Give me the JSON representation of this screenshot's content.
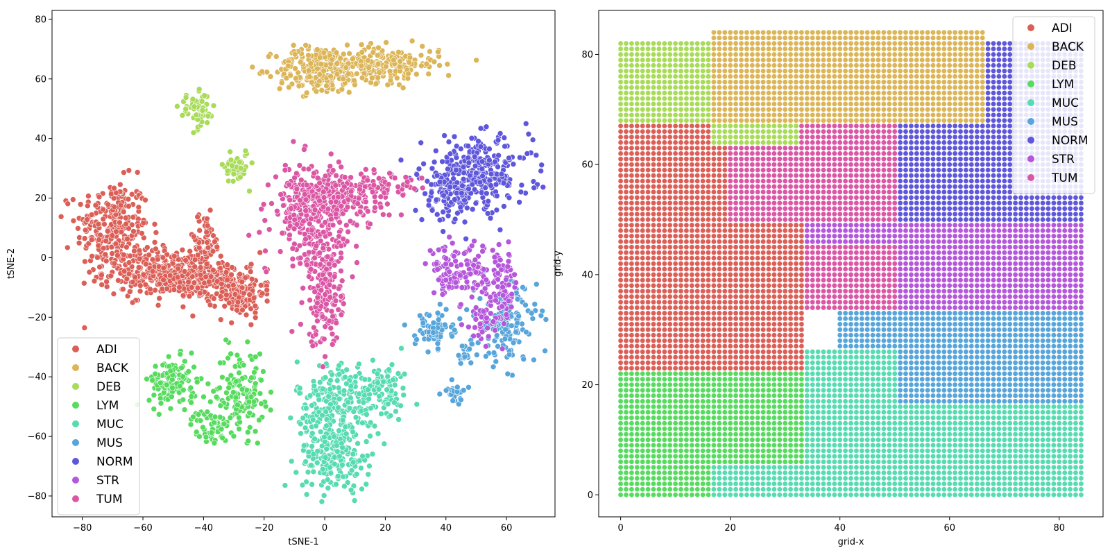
{
  "palette": {
    "ADI": "#db5f57",
    "BACK": "#dbb557",
    "DEB": "#a8db57",
    "LYM": "#57db5f",
    "MUC": "#57dbb0",
    "MUS": "#57a5db",
    "NORM": "#5f57db",
    "STR": "#b557db",
    "TUM": "#db57a5"
  },
  "chart_data": [
    {
      "type": "scatter",
      "xlabel": "tSNE-1",
      "ylabel": "tSNE-2",
      "xlim": [
        -90,
        76
      ],
      "ylim": [
        -87,
        83
      ],
      "xticks": [
        -80,
        -60,
        -40,
        -20,
        0,
        20,
        40,
        60
      ],
      "yticks": [
        -80,
        -60,
        -40,
        -20,
        0,
        20,
        40,
        60,
        80
      ],
      "legend": {
        "placement": "lower-left",
        "entries": [
          "ADI",
          "BACK",
          "DEB",
          "LYM",
          "MUC",
          "MUS",
          "NORM",
          "STR",
          "TUM"
        ]
      },
      "grid": false,
      "clusters": [
        {
          "class": "ADI",
          "center": [
            -70,
            10
          ],
          "spread": [
            6,
            8
          ],
          "n": 260
        },
        {
          "class": "ADI",
          "center": [
            -55,
            -5
          ],
          "spread": [
            9,
            4
          ],
          "n": 260
        },
        {
          "class": "ADI",
          "center": [
            -40,
            -8
          ],
          "spread": [
            7,
            3
          ],
          "n": 180
        },
        {
          "class": "ADI",
          "center": [
            -40,
            5
          ],
          "spread": [
            3,
            5
          ],
          "n": 70
        },
        {
          "class": "ADI",
          "center": [
            -28,
            -12
          ],
          "spread": [
            4,
            4
          ],
          "n": 140
        },
        {
          "class": "BACK",
          "center": [
            -2,
            63
          ],
          "spread": [
            7,
            4
          ],
          "n": 230
        },
        {
          "class": "BACK",
          "center": [
            18,
            65
          ],
          "spread": [
            10,
            3
          ],
          "n": 230
        },
        {
          "class": "DEB",
          "center": [
            -42,
            49
          ],
          "spread": [
            3,
            3
          ],
          "n": 60
        },
        {
          "class": "DEB",
          "center": [
            -29,
            31
          ],
          "spread": [
            2,
            3
          ],
          "n": 45
        },
        {
          "class": "LYM",
          "center": [
            -50,
            -42
          ],
          "spread": [
            4,
            4
          ],
          "n": 130
        },
        {
          "class": "LYM",
          "center": [
            -28,
            -45
          ],
          "spread": [
            4,
            7
          ],
          "n": 140
        },
        {
          "class": "LYM",
          "center": [
            -38,
            -57
          ],
          "spread": [
            3,
            3
          ],
          "n": 50
        },
        {
          "class": "MUC",
          "center": [
            5,
            -48
          ],
          "spread": [
            7,
            7
          ],
          "n": 230
        },
        {
          "class": "MUC",
          "center": [
            3,
            -66
          ],
          "spread": [
            6,
            6
          ],
          "n": 200
        },
        {
          "class": "MUC",
          "center": [
            20,
            -45
          ],
          "spread": [
            4,
            5
          ],
          "n": 70
        },
        {
          "class": "MUS",
          "center": [
            36,
            -24
          ],
          "spread": [
            3,
            3
          ],
          "n": 70
        },
        {
          "class": "MUS",
          "center": [
            60,
            -22
          ],
          "spread": [
            5,
            7
          ],
          "n": 150
        },
        {
          "class": "MUS",
          "center": [
            47,
            -32
          ],
          "spread": [
            2,
            2
          ],
          "n": 20
        },
        {
          "class": "MUS",
          "center": [
            43,
            -45
          ],
          "spread": [
            2,
            2
          ],
          "n": 25
        },
        {
          "class": "NORM",
          "center": [
            50,
            28
          ],
          "spread": [
            9,
            6
          ],
          "n": 300
        },
        {
          "class": "NORM",
          "center": [
            40,
            20
          ],
          "spread": [
            4,
            4
          ],
          "n": 70
        },
        {
          "class": "STR",
          "center": [
            40,
            -5
          ],
          "spread": [
            3,
            4
          ],
          "n": 60
        },
        {
          "class": "STR",
          "center": [
            48,
            -5
          ],
          "spread": [
            3,
            5
          ],
          "n": 60
        },
        {
          "class": "STR",
          "center": [
            58,
            -10
          ],
          "spread": [
            3,
            6
          ],
          "n": 90
        },
        {
          "class": "STR",
          "center": [
            52,
            -22
          ],
          "spread": [
            3,
            3
          ],
          "n": 30
        },
        {
          "class": "TUM",
          "center": [
            -5,
            15
          ],
          "spread": [
            6,
            8
          ],
          "n": 260
        },
        {
          "class": "TUM",
          "center": [
            5,
            20
          ],
          "spread": [
            8,
            5
          ],
          "n": 200
        },
        {
          "class": "TUM",
          "center": [
            0,
            -10
          ],
          "spread": [
            3,
            10
          ],
          "n": 200
        },
        {
          "class": "TUM",
          "center": [
            20,
            24
          ],
          "spread": [
            6,
            2
          ],
          "n": 50
        }
      ]
    },
    {
      "type": "scatter",
      "xlabel": "grid-x",
      "ylabel": "grid-y",
      "xlim": [
        -4,
        88
      ],
      "ylim": [
        -4,
        88
      ],
      "xticks": [
        0,
        20,
        40,
        60,
        80
      ],
      "yticks": [
        0,
        20,
        40,
        60,
        80
      ],
      "legend": {
        "placement": "upper-right",
        "entries": [
          "ADI",
          "BACK",
          "DEB",
          "LYM",
          "MUC",
          "MUS",
          "NORM",
          "STR",
          "TUM"
        ]
      },
      "grid": false,
      "grid_points": {
        "x_range": [
          0,
          84
        ],
        "y_range": [
          0,
          84
        ],
        "step": 1
      },
      "regions": [
        {
          "class": "LYM",
          "x": [
            0,
            16
          ],
          "y": [
            0,
            22
          ]
        },
        {
          "class": "MUC",
          "x": [
            17,
            84
          ],
          "y": [
            0,
            5
          ]
        },
        {
          "class": "LYM",
          "x": [
            17,
            33
          ],
          "y": [
            6,
            22
          ]
        },
        {
          "class": "MUC",
          "x": [
            34,
            84
          ],
          "y": [
            6,
            26
          ]
        },
        {
          "class": "MUS",
          "x": [
            51,
            84
          ],
          "y": [
            17,
            26
          ]
        },
        {
          "class": "MUS",
          "x": [
            40,
            84
          ],
          "y": [
            27,
            33
          ]
        },
        {
          "class": "ADI",
          "x": [
            0,
            33
          ],
          "y": [
            23,
            67
          ]
        },
        {
          "class": "STR",
          "x": [
            34,
            84
          ],
          "y": [
            34,
            49
          ]
        },
        {
          "class": "TUM",
          "x": [
            20,
            66
          ],
          "y": [
            50,
            67
          ]
        },
        {
          "class": "TUM",
          "x": [
            34,
            50
          ],
          "y": [
            34,
            45
          ]
        },
        {
          "class": "NORM",
          "x": [
            51,
            84
          ],
          "y": [
            50,
            71
          ]
        },
        {
          "class": "NORM",
          "x": [
            67,
            84
          ],
          "y": [
            72,
            82
          ]
        },
        {
          "class": "BACK",
          "x": [
            17,
            66
          ],
          "y": [
            68,
            84
          ]
        },
        {
          "class": "BACK",
          "x": [
            51,
            66
          ],
          "y": [
            68,
            71
          ]
        },
        {
          "class": "DEB",
          "x": [
            0,
            16
          ],
          "y": [
            68,
            82
          ]
        },
        {
          "class": "DEB",
          "x": [
            17,
            32
          ],
          "y": [
            64,
            67
          ]
        }
      ]
    }
  ]
}
